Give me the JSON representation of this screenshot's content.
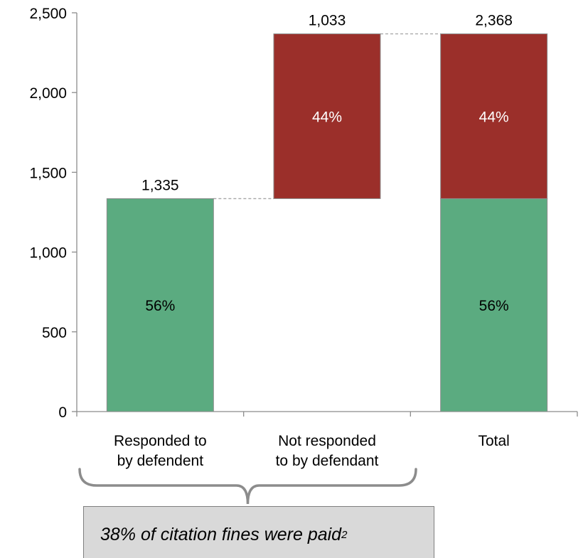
{
  "chart_data": {
    "type": "bar",
    "subtype": "waterfall",
    "categories": [
      "Responded to\nby defendent",
      "Not responded\nto by defendant",
      "Total"
    ],
    "ylim": [
      0,
      2500
    ],
    "yticks": [
      "0",
      "500",
      "1,000",
      "1,500",
      "2,000",
      "2,500"
    ],
    "grid": false,
    "bars": [
      {
        "category": "Responded to\nby defendent",
        "segments": [
          {
            "base": 0,
            "value": 1335,
            "color": "#5bab80",
            "label": "56%"
          }
        ],
        "total_label": "1,335"
      },
      {
        "category": "Not responded\nto by defendant",
        "segments": [
          {
            "base": 1335,
            "value": 1033,
            "color": "#9b2f2a",
            "label": "44%"
          }
        ],
        "total_label": "1,033"
      },
      {
        "category": "Total",
        "segments": [
          {
            "base": 0,
            "value": 1335,
            "color": "#5bab80",
            "label": "56%"
          },
          {
            "base": 1335,
            "value": 1033,
            "color": "#9b2f2a",
            "label": "44%"
          }
        ],
        "total_label": "2,368"
      }
    ],
    "connectors": [
      1335,
      2368
    ],
    "colors": {
      "green": "#5bab80",
      "red": "#9b2f2a"
    }
  },
  "callout": {
    "text": "38% of citation fines were paid",
    "superscript": "2"
  }
}
